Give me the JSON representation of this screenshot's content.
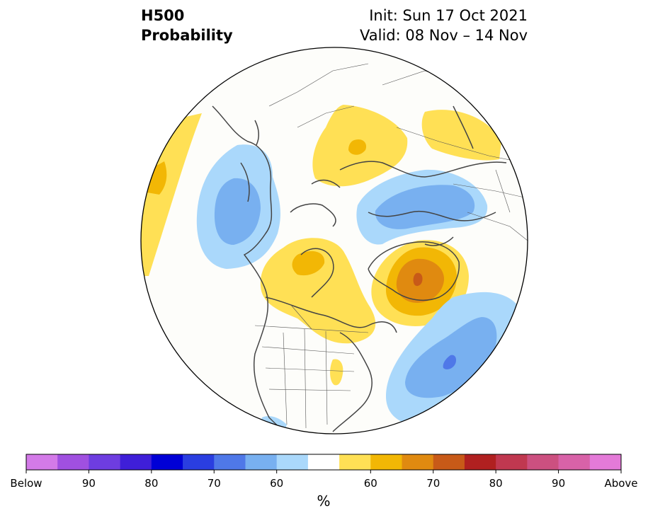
{
  "header": {
    "variable": "H500",
    "product": "Probability",
    "init": "Init: Sun 17 Oct 2021",
    "valid": "Valid: 08 Nov – 14 Nov"
  },
  "colorbar": {
    "unit": "%",
    "colors": [
      "#d37ae8",
      "#a050e0",
      "#6e3de0",
      "#3f1fd8",
      "#0000d6",
      "#2a3ee0",
      "#4f78e8",
      "#78b0f0",
      "#aad8fb",
      "#ffffff",
      "#ffe055",
      "#f2b705",
      "#e08a10",
      "#c85a18",
      "#b02020",
      "#c03850",
      "#cc5080",
      "#d862a8",
      "#e47ad8"
    ],
    "tick_labels": [
      "Below",
      "90",
      "80",
      "70",
      "60",
      "60",
      "70",
      "80",
      "90",
      "Above"
    ],
    "tick_index": [
      0,
      2,
      4,
      6,
      8,
      11,
      13,
      15,
      17,
      19
    ]
  }
}
